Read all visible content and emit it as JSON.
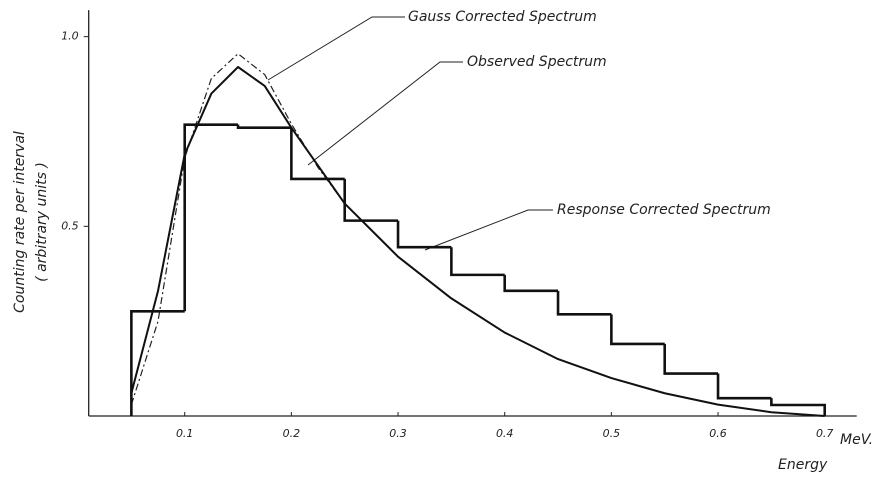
{
  "chart_data": {
    "type": "line",
    "x_label": "Energy",
    "x_unit": "MeV.",
    "y_label": [
      "Counting rate per interval",
      "( arbitrary units )"
    ],
    "xlim": [
      0.01,
      0.73
    ],
    "ylim": [
      0,
      1.07
    ],
    "xticks": [
      0.1,
      0.2,
      0.3,
      0.4,
      0.5,
      0.6,
      0.7
    ],
    "yticks": [
      {
        "value": 0.5,
        "label": "0.5"
      },
      {
        "value": 1,
        "label": "1.0"
      }
    ],
    "series": [
      {
        "name": "Gauss Corrected Spectrum",
        "color": "#222",
        "style": "dashed",
        "x": [
          0.05,
          0.075,
          0.1,
          0.125,
          0.15,
          0.175,
          0.2,
          0.225,
          0.25
        ],
        "values": [
          0.03,
          0.25,
          0.68,
          0.89,
          0.955,
          0.9,
          0.77,
          0.655,
          0.56
        ]
      },
      {
        "name": "Observed Spectrum",
        "color": "#111",
        "style": "solid",
        "x": [
          0.05,
          0.075,
          0.1,
          0.125,
          0.15,
          0.175,
          0.2,
          0.25,
          0.3,
          0.35,
          0.4,
          0.45,
          0.5,
          0.55,
          0.6,
          0.65,
          0.7
        ],
        "values": [
          0.06,
          0.33,
          0.69,
          0.85,
          0.92,
          0.87,
          0.76,
          0.56,
          0.42,
          0.31,
          0.22,
          0.15,
          0.1,
          0.06,
          0.03,
          0.01,
          0
        ]
      },
      {
        "name": "Response Corrected Spectrum",
        "color": "#111",
        "style": "step",
        "bins": [
          0.05,
          0.1,
          0.15,
          0.2,
          0.25,
          0.3,
          0.35,
          0.4,
          0.45,
          0.5,
          0.55,
          0.6,
          0.65,
          0.7
        ],
        "values": [
          0.276,
          0.768,
          0.76,
          0.625,
          0.515,
          0.445,
          0.372,
          0.33,
          0.268,
          0.19,
          0.112,
          0.047,
          0.029
        ]
      }
    ]
  }
}
